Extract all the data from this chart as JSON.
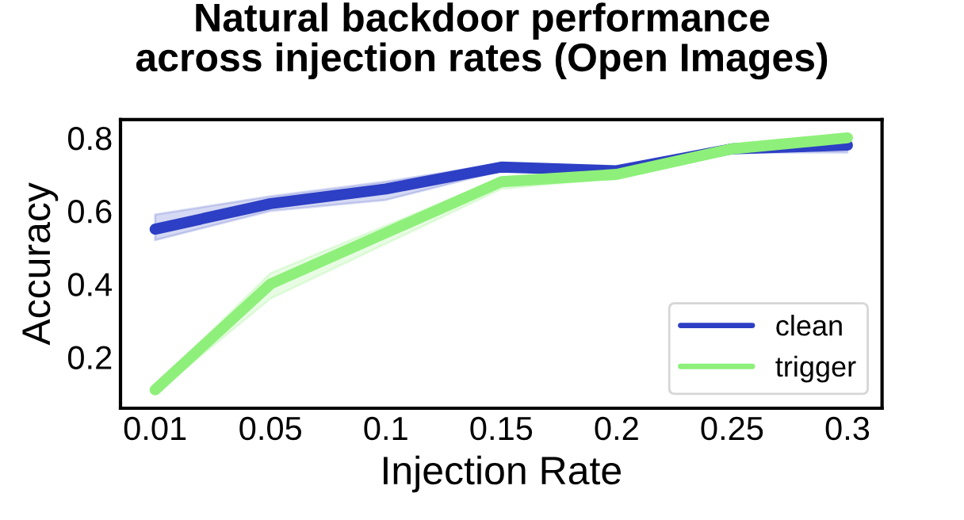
{
  "chart_data": {
    "type": "line",
    "title": "Natural backdoor performance\nacross injection rates (Open Images)",
    "xlabel": "Injection Rate",
    "ylabel": "Accuracy",
    "categories": [
      "0.01",
      "0.05",
      "0.1",
      "0.15",
      "0.2",
      "0.25",
      "0.3"
    ],
    "series": [
      {
        "name": "clean",
        "color": "#2d3fc4",
        "values": [
          0.55,
          0.62,
          0.66,
          0.72,
          0.71,
          0.77,
          0.78
        ],
        "lower": [
          0.52,
          0.6,
          0.63,
          0.71,
          0.7,
          0.76,
          0.76
        ],
        "upper": [
          0.59,
          0.64,
          0.68,
          0.73,
          0.72,
          0.78,
          0.79
        ]
      },
      {
        "name": "trigger",
        "color": "#8ef07a",
        "values": [
          0.11,
          0.4,
          0.54,
          0.68,
          0.7,
          0.77,
          0.8
        ],
        "lower": [
          0.1,
          0.36,
          0.51,
          0.66,
          0.69,
          0.76,
          0.79
        ],
        "upper": [
          0.12,
          0.43,
          0.56,
          0.69,
          0.71,
          0.77,
          0.81
        ]
      }
    ],
    "ylim": [
      0.06,
      0.85
    ],
    "yticks": [
      0.2,
      0.4,
      0.6,
      0.8
    ],
    "grid": false,
    "legend": "bottom right"
  }
}
